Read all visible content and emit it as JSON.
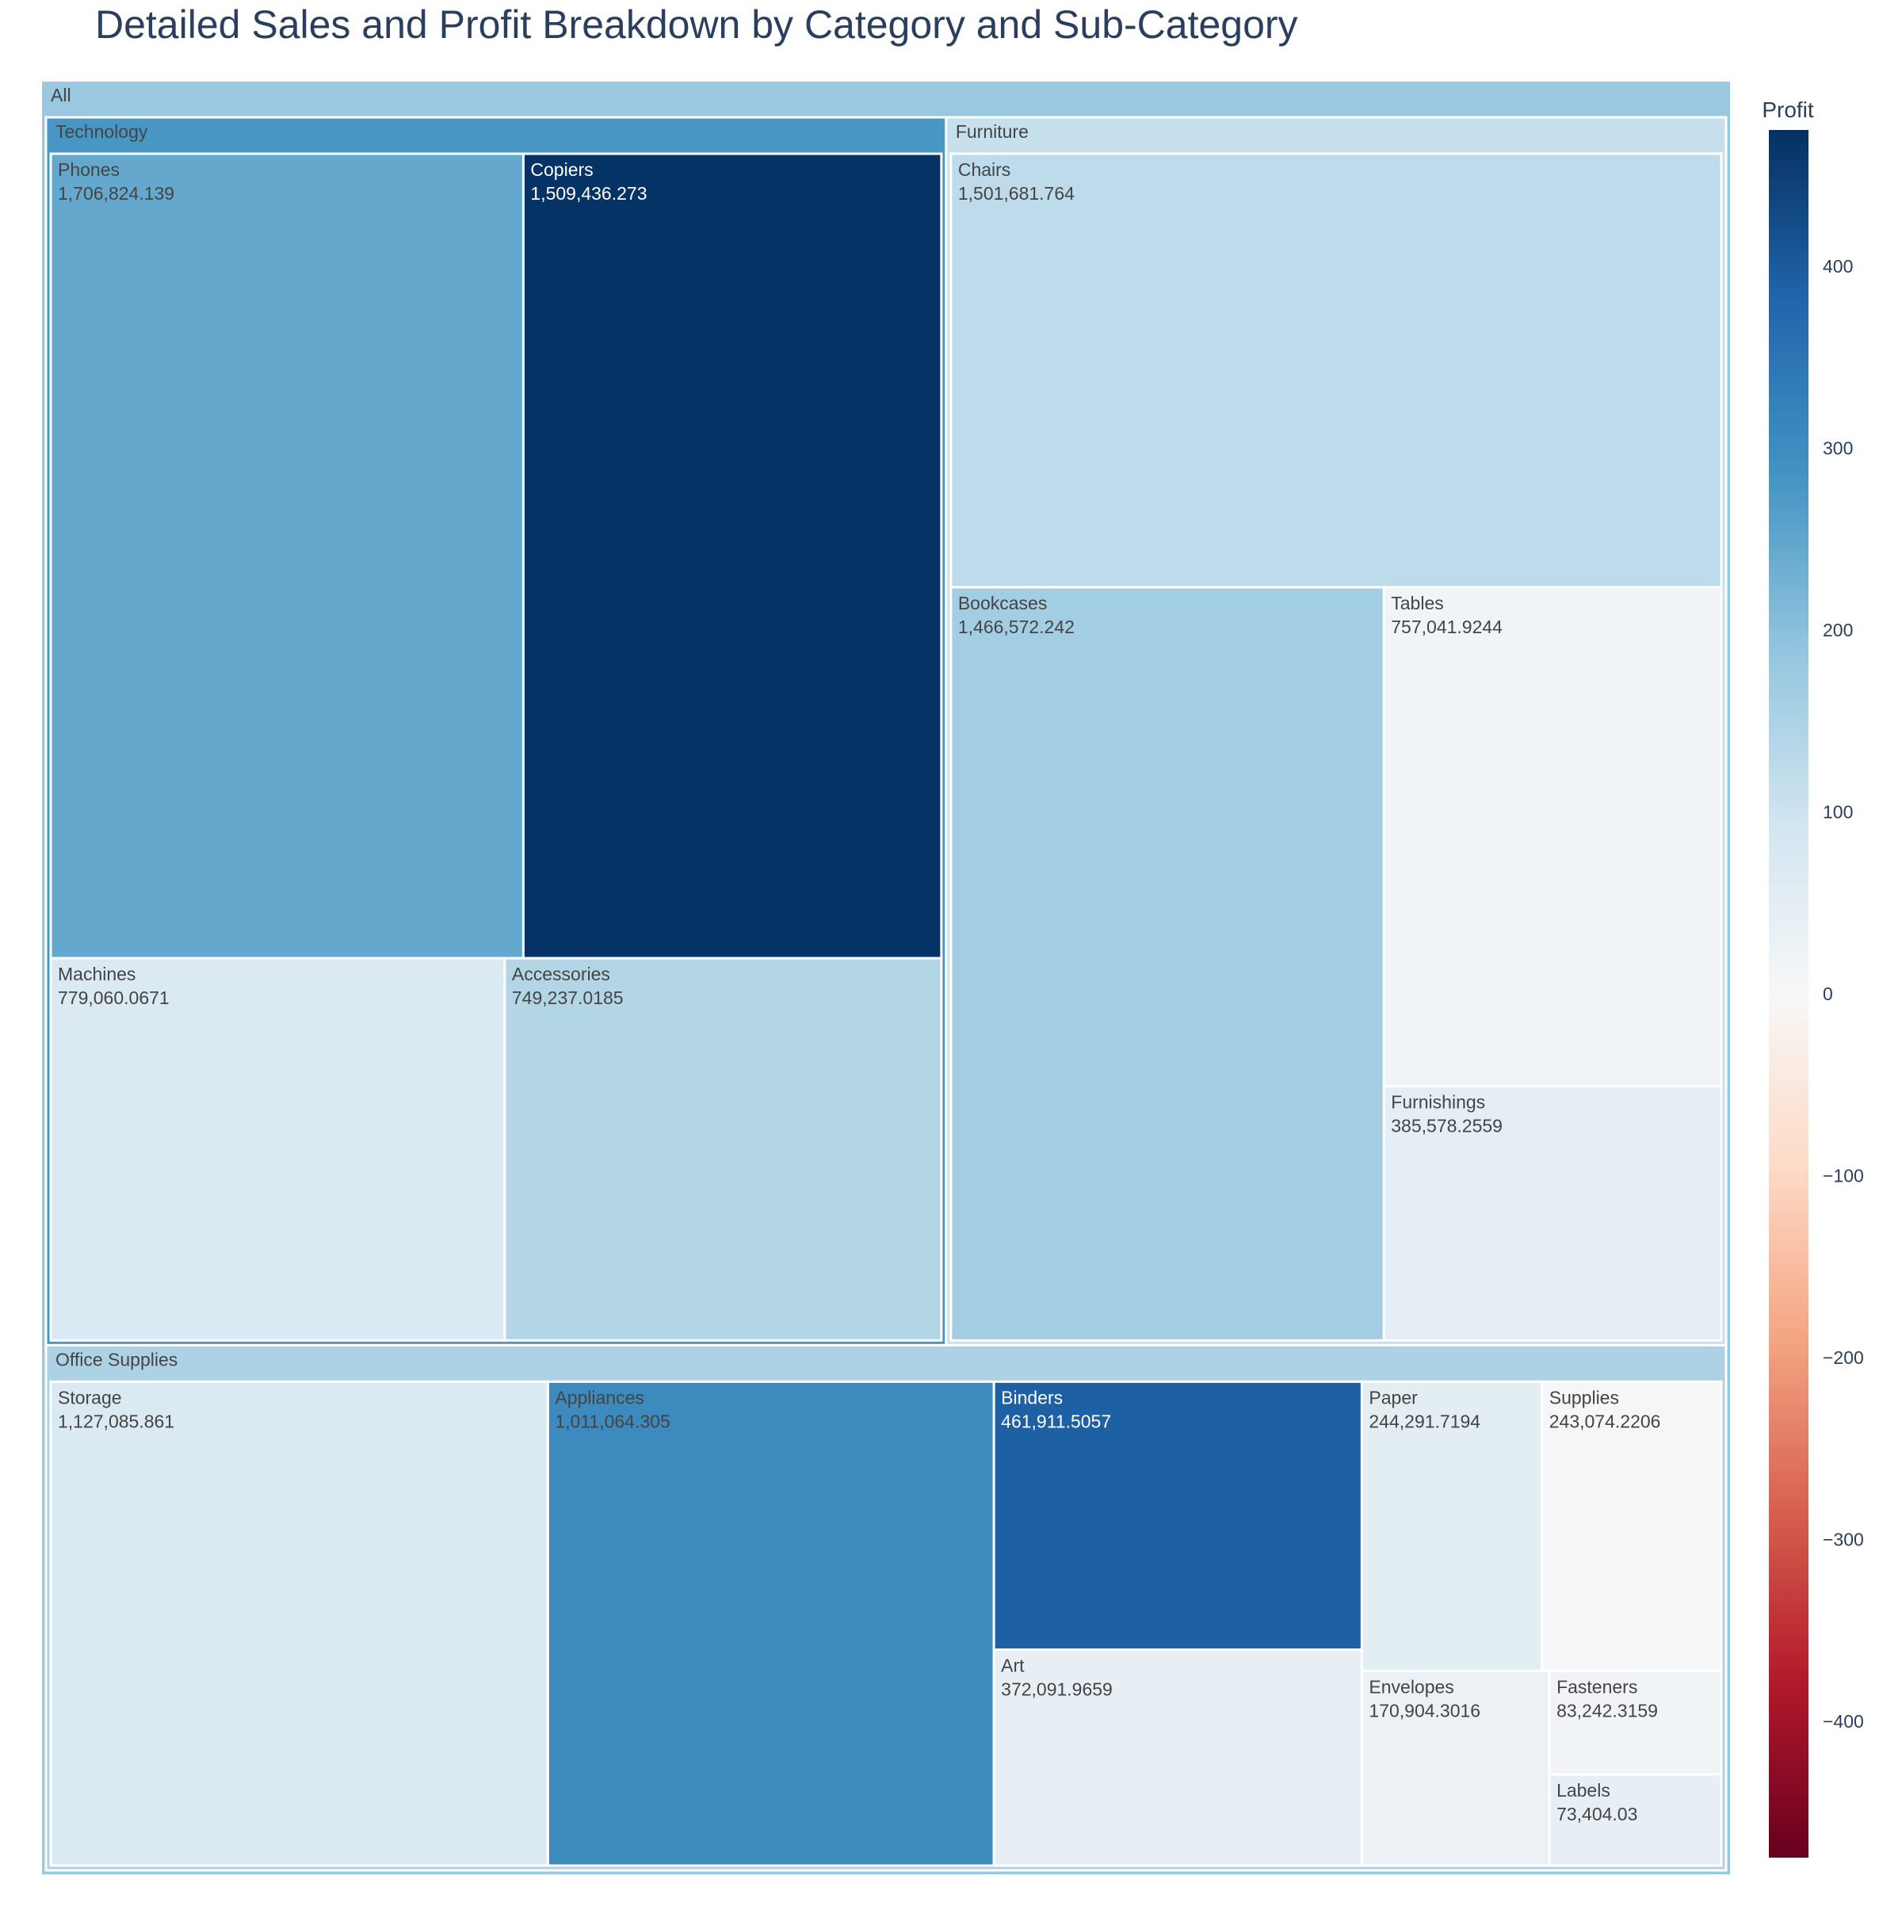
{
  "chart_data": {
    "type": "treemap",
    "title": "Detailed Sales and Profit Breakdown by Category and Sub-Category",
    "root_label": "All",
    "value_field": "Sales",
    "color_field": "Profit",
    "categories": [
      {
        "name": "Technology",
        "profit": 280,
        "children": [
          {
            "name": "Phones",
            "value_text": "1,706,824.139",
            "value": 1706824.139,
            "profit": 245
          },
          {
            "name": "Copiers",
            "value_text": "1,509,436.273",
            "value": 1509436.273,
            "profit": 470
          },
          {
            "name": "Machines",
            "value_text": "779,060.0671",
            "value": 779060.0671,
            "profit": 70
          },
          {
            "name": "Accessories",
            "value_text": "749,237.0185",
            "value": 749237.0185,
            "profit": 140
          }
        ]
      },
      {
        "name": "Furniture",
        "profit": 110,
        "children": [
          {
            "name": "Chairs",
            "value_text": "1,501,681.764",
            "value": 1501681.764,
            "profit": 125
          },
          {
            "name": "Bookcases",
            "value_text": "1,466,572.242",
            "value": 1466572.242,
            "profit": 165
          },
          {
            "name": "Tables",
            "value_text": "757,041.9244",
            "value": 757041.9244,
            "profit": 15
          },
          {
            "name": "Furnishings",
            "value_text": "385,578.2559",
            "value": 385578.2559,
            "profit": 45
          }
        ]
      },
      {
        "name": "Office Supplies",
        "profit": 150,
        "children": [
          {
            "name": "Storage",
            "value_text": "1,127,085.861",
            "value": 1127085.861,
            "profit": 70
          },
          {
            "name": "Appliances",
            "value_text": "1,011,064.305",
            "value": 1011064.305,
            "profit": 305
          },
          {
            "name": "Binders",
            "value_text": "461,911.5057",
            "value": 461911.5057,
            "profit": 390
          },
          {
            "name": "Art",
            "value_text": "372,091.9659",
            "value": 372091.9659,
            "profit": 40
          },
          {
            "name": "Paper",
            "value_text": "244,291.7194",
            "value": 244291.7194,
            "profit": 50
          },
          {
            "name": "Supplies",
            "value_text": "243,074.2206",
            "value": 243074.2206,
            "profit": 5
          },
          {
            "name": "Envelopes",
            "value_text": "170,904.3016",
            "value": 170904.3016,
            "profit": 30
          },
          {
            "name": "Fasteners",
            "value_text": "83,242.3159",
            "value": 83242.3159,
            "profit": 15
          },
          {
            "name": "Labels",
            "value_text": "73,404.03",
            "value": 73404.03,
            "profit": 40
          }
        ]
      }
    ],
    "colorbar": {
      "title": "Profit",
      "range": [
        -475,
        475
      ],
      "ticks": [
        400,
        300,
        200,
        100,
        0,
        -100,
        -200,
        -300,
        -400
      ],
      "tick_labels": [
        "400",
        "300",
        "200",
        "100",
        "0",
        "−100",
        "−200",
        "−300",
        "−400"
      ],
      "colorscale": [
        "#67001f",
        "#b2182b",
        "#d6604d",
        "#f4a582",
        "#fddbc7",
        "#f7f7f7",
        "#d1e5f0",
        "#92c5de",
        "#4393c3",
        "#2166ac",
        "#053061"
      ]
    }
  }
}
